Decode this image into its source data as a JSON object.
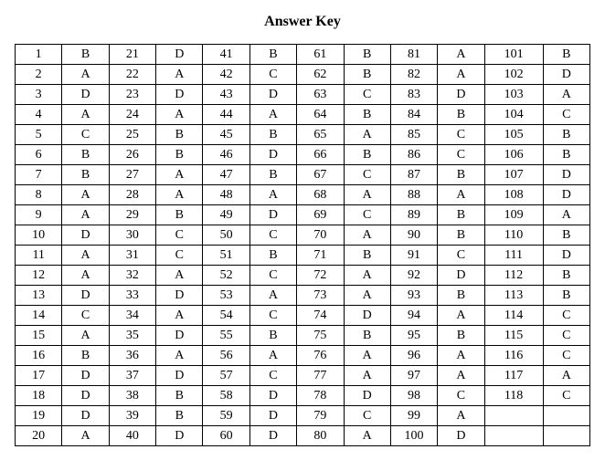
{
  "title": "Answer Key",
  "columns_count": 12,
  "rows_count": 20,
  "col_classes": [
    "num",
    "ans",
    "num",
    "ans",
    "num",
    "ans",
    "num",
    "ans",
    "num",
    "ans",
    "num-wide",
    "ans-wide"
  ],
  "rows": [
    [
      "1",
      "B",
      "21",
      "D",
      "41",
      "B",
      "61",
      "B",
      "81",
      "A",
      "101",
      "B"
    ],
    [
      "2",
      "A",
      "22",
      "A",
      "42",
      "C",
      "62",
      "B",
      "82",
      "A",
      "102",
      "D"
    ],
    [
      "3",
      "D",
      "23",
      "D",
      "43",
      "D",
      "63",
      "C",
      "83",
      "D",
      "103",
      "A"
    ],
    [
      "4",
      "A",
      "24",
      "A",
      "44",
      "A",
      "64",
      "B",
      "84",
      "B",
      "104",
      "C"
    ],
    [
      "5",
      "C",
      "25",
      "B",
      "45",
      "B",
      "65",
      "A",
      "85",
      "C",
      "105",
      "B"
    ],
    [
      "6",
      "B",
      "26",
      "B",
      "46",
      "D",
      "66",
      "B",
      "86",
      "C",
      "106",
      "B"
    ],
    [
      "7",
      "B",
      "27",
      "A",
      "47",
      "B",
      "67",
      "C",
      "87",
      "B",
      "107",
      "D"
    ],
    [
      "8",
      "A",
      "28",
      "A",
      "48",
      "A",
      "68",
      "A",
      "88",
      "A",
      "108",
      "D"
    ],
    [
      "9",
      "A",
      "29",
      "B",
      "49",
      "D",
      "69",
      "C",
      "89",
      "B",
      "109",
      "A"
    ],
    [
      "10",
      "D",
      "30",
      "C",
      "50",
      "C",
      "70",
      "A",
      "90",
      "B",
      "110",
      "B"
    ],
    [
      "11",
      "A",
      "31",
      "C",
      "51",
      "B",
      "71",
      "B",
      "91",
      "C",
      "111",
      "D"
    ],
    [
      "12",
      "A",
      "32",
      "A",
      "52",
      "C",
      "72",
      "A",
      "92",
      "D",
      "112",
      "B"
    ],
    [
      "13",
      "D",
      "33",
      "D",
      "53",
      "A",
      "73",
      "A",
      "93",
      "B",
      "113",
      "B"
    ],
    [
      "14",
      "C",
      "34",
      "A",
      "54",
      "C",
      "74",
      "D",
      "94",
      "A",
      "114",
      "C"
    ],
    [
      "15",
      "A",
      "35",
      "D",
      "55",
      "B",
      "75",
      "B",
      "95",
      "B",
      "115",
      "C"
    ],
    [
      "16",
      "B",
      "36",
      "A",
      "56",
      "A",
      "76",
      "A",
      "96",
      "A",
      "116",
      "C"
    ],
    [
      "17",
      "D",
      "37",
      "D",
      "57",
      "C",
      "77",
      "A",
      "97",
      "A",
      "117",
      "A"
    ],
    [
      "18",
      "D",
      "38",
      "B",
      "58",
      "D",
      "78",
      "D",
      "98",
      "C",
      "118",
      "C"
    ],
    [
      "19",
      "D",
      "39",
      "B",
      "59",
      "D",
      "79",
      "C",
      "99",
      "A",
      "",
      ""
    ],
    [
      "20",
      "A",
      "40",
      "D",
      "60",
      "D",
      "80",
      "A",
      "100",
      "D",
      "",
      ""
    ]
  ]
}
